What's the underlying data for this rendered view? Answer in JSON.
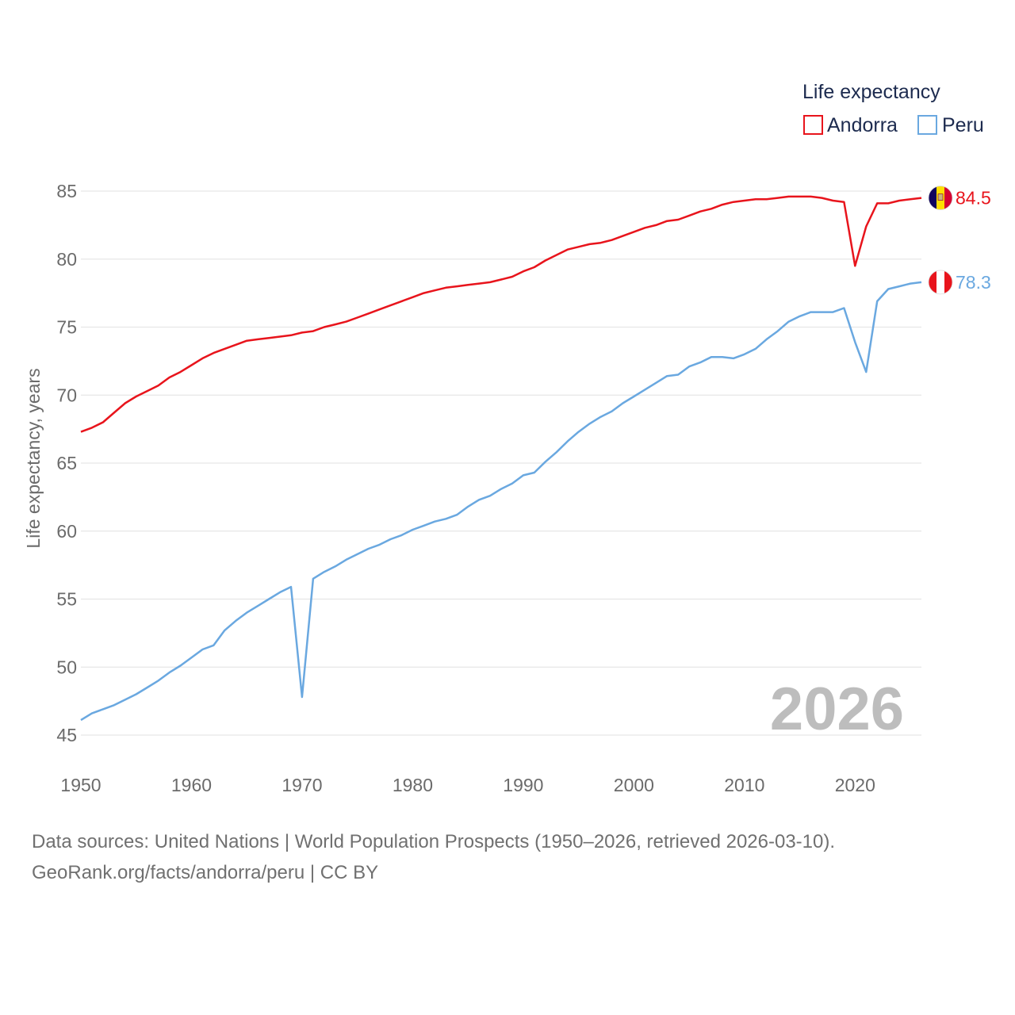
{
  "chart_data": {
    "type": "line",
    "title": "",
    "legend_title": "Life expectancy",
    "ylabel": "Life expectancy, years",
    "xlabel": "",
    "xlim": [
      1950,
      2026
    ],
    "ylim": [
      45,
      85
    ],
    "x_ticks": [
      1950,
      1960,
      1970,
      1980,
      1990,
      2000,
      2010,
      2020
    ],
    "y_ticks": [
      45,
      50,
      55,
      60,
      65,
      70,
      75,
      80,
      85
    ],
    "current_year": "2026",
    "legend_position": "top-right",
    "series": [
      {
        "name": "Andorra",
        "color": "#e8141c",
        "end_label": "84.5",
        "flag": "andorra-flag",
        "x": [
          1950,
          1951,
          1952,
          1953,
          1954,
          1955,
          1956,
          1957,
          1958,
          1959,
          1960,
          1961,
          1962,
          1963,
          1964,
          1965,
          1966,
          1967,
          1968,
          1969,
          1970,
          1971,
          1972,
          1973,
          1974,
          1975,
          1976,
          1977,
          1978,
          1979,
          1980,
          1981,
          1982,
          1983,
          1984,
          1985,
          1986,
          1987,
          1988,
          1989,
          1990,
          1991,
          1992,
          1993,
          1994,
          1995,
          1996,
          1997,
          1998,
          1999,
          2000,
          2001,
          2002,
          2003,
          2004,
          2005,
          2006,
          2007,
          2008,
          2009,
          2010,
          2011,
          2012,
          2013,
          2014,
          2015,
          2016,
          2017,
          2018,
          2019,
          2020,
          2021,
          2022,
          2023,
          2024,
          2025,
          2026
        ],
        "values": [
          67.3,
          67.6,
          68.0,
          68.7,
          69.4,
          69.9,
          70.3,
          70.7,
          71.3,
          71.7,
          72.2,
          72.7,
          73.1,
          73.4,
          73.7,
          74.0,
          74.1,
          74.2,
          74.3,
          74.4,
          74.6,
          74.7,
          75.0,
          75.2,
          75.4,
          75.7,
          76.0,
          76.3,
          76.6,
          76.9,
          77.2,
          77.5,
          77.7,
          77.9,
          78.0,
          78.1,
          78.2,
          78.3,
          78.5,
          78.7,
          79.1,
          79.4,
          79.9,
          80.3,
          80.7,
          80.9,
          81.1,
          81.2,
          81.4,
          81.7,
          82.0,
          82.3,
          82.5,
          82.8,
          82.9,
          83.2,
          83.5,
          83.7,
          84.0,
          84.2,
          84.3,
          84.4,
          84.4,
          84.5,
          84.6,
          84.6,
          84.6,
          84.5,
          84.3,
          84.2,
          79.5,
          82.4,
          84.1,
          84.1,
          84.3,
          84.4,
          84.5
        ]
      },
      {
        "name": "Peru",
        "color": "#6aa8e0",
        "end_label": "78.3",
        "flag": "peru-flag",
        "x": [
          1950,
          1951,
          1952,
          1953,
          1954,
          1955,
          1956,
          1957,
          1958,
          1959,
          1960,
          1961,
          1962,
          1963,
          1964,
          1965,
          1966,
          1967,
          1968,
          1969,
          1970,
          1971,
          1972,
          1973,
          1974,
          1975,
          1976,
          1977,
          1978,
          1979,
          1980,
          1981,
          1982,
          1983,
          1984,
          1985,
          1986,
          1987,
          1988,
          1989,
          1990,
          1991,
          1992,
          1993,
          1994,
          1995,
          1996,
          1997,
          1998,
          1999,
          2000,
          2001,
          2002,
          2003,
          2004,
          2005,
          2006,
          2007,
          2008,
          2009,
          2010,
          2011,
          2012,
          2013,
          2014,
          2015,
          2016,
          2017,
          2018,
          2019,
          2020,
          2021,
          2022,
          2023,
          2024,
          2025,
          2026
        ],
        "values": [
          46.1,
          46.6,
          46.9,
          47.2,
          47.6,
          48.0,
          48.5,
          49.0,
          49.6,
          50.1,
          50.7,
          51.3,
          51.6,
          52.7,
          53.4,
          54.0,
          54.5,
          55.0,
          55.5,
          55.9,
          47.8,
          56.5,
          57.0,
          57.4,
          57.9,
          58.3,
          58.7,
          59.0,
          59.4,
          59.7,
          60.1,
          60.4,
          60.7,
          60.9,
          61.2,
          61.8,
          62.3,
          62.6,
          63.1,
          63.5,
          64.1,
          64.3,
          65.1,
          65.8,
          66.6,
          67.3,
          67.9,
          68.4,
          68.8,
          69.4,
          69.9,
          70.4,
          70.9,
          71.4,
          71.5,
          72.1,
          72.4,
          72.8,
          72.8,
          72.7,
          73.0,
          73.4,
          74.1,
          74.7,
          75.4,
          75.8,
          76.1,
          76.1,
          76.1,
          76.4,
          73.9,
          71.7,
          76.9,
          77.8,
          78.0,
          78.2,
          78.3
        ]
      }
    ]
  },
  "source": {
    "line1": "Data sources: United Nations | World Population Prospects (1950–2026, retrieved 2026-03-10).",
    "line2": "GeoRank.org/facts/andorra/peru | CC BY"
  }
}
